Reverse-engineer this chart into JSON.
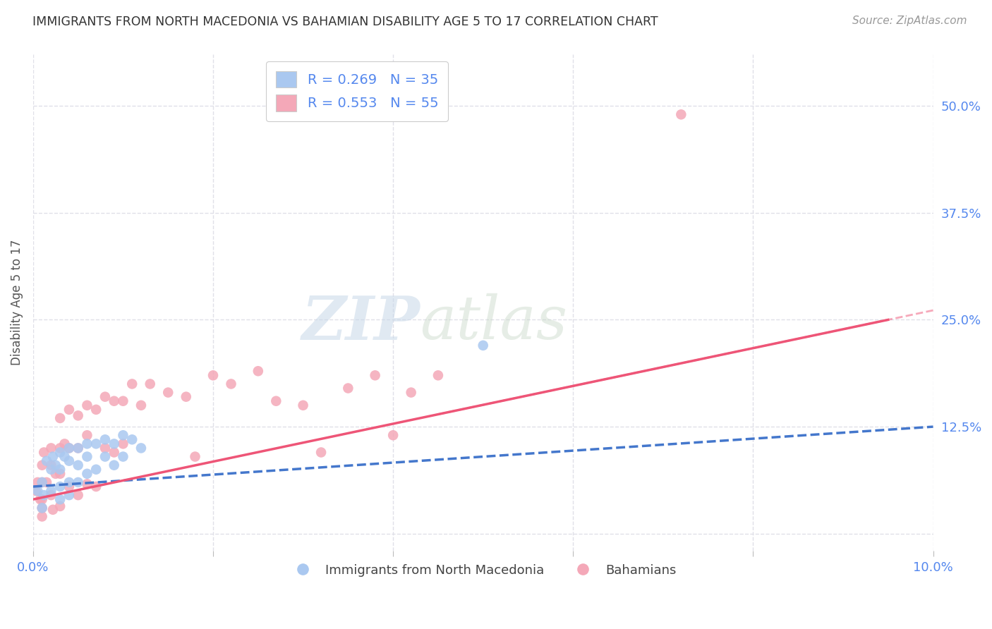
{
  "title": "IMMIGRANTS FROM NORTH MACEDONIA VS BAHAMIAN DISABILITY AGE 5 TO 17 CORRELATION CHART",
  "source": "Source: ZipAtlas.com",
  "ylabel": "Disability Age 5 to 17",
  "xlim": [
    0.0,
    0.1
  ],
  "ylim": [
    -0.02,
    0.56
  ],
  "xtick_positions": [
    0.0,
    0.02,
    0.04,
    0.06,
    0.08,
    0.1
  ],
  "xticklabels": [
    "0.0%",
    "",
    "",
    "",
    "",
    "10.0%"
  ],
  "yticks_right": [
    0.0,
    0.125,
    0.25,
    0.375,
    0.5
  ],
  "yticklabels_right": [
    "",
    "12.5%",
    "25.0%",
    "37.5%",
    "50.0%"
  ],
  "legend_stat_labels": [
    "R = 0.269   N = 35",
    "R = 0.553   N = 55"
  ],
  "legend_series_labels": [
    "Immigrants from North Macedonia",
    "Bahamians"
  ],
  "series1_color": "#aac8f0",
  "series2_color": "#f4a8b8",
  "line1_color": "#4477cc",
  "line2_color": "#ee5577",
  "title_color": "#333333",
  "source_color": "#999999",
  "label_color": "#5588ee",
  "grid_color": "#e0e0e8",
  "watermark_color": "#d8e4f0",
  "line1_style": "--",
  "line2_style": "-",
  "series1_x": [
    0.0005,
    0.001,
    0.0012,
    0.0015,
    0.002,
    0.002,
    0.0022,
    0.0025,
    0.003,
    0.003,
    0.003,
    0.003,
    0.0035,
    0.004,
    0.004,
    0.004,
    0.004,
    0.005,
    0.005,
    0.005,
    0.006,
    0.006,
    0.006,
    0.007,
    0.007,
    0.008,
    0.008,
    0.009,
    0.009,
    0.01,
    0.01,
    0.011,
    0.012,
    0.05,
    0.001
  ],
  "series1_y": [
    0.05,
    0.06,
    0.045,
    0.085,
    0.075,
    0.05,
    0.09,
    0.08,
    0.095,
    0.075,
    0.055,
    0.04,
    0.09,
    0.1,
    0.085,
    0.06,
    0.045,
    0.1,
    0.08,
    0.06,
    0.105,
    0.09,
    0.07,
    0.105,
    0.075,
    0.11,
    0.09,
    0.105,
    0.08,
    0.115,
    0.09,
    0.11,
    0.1,
    0.22,
    0.03
  ],
  "series2_x": [
    0.0003,
    0.0005,
    0.0008,
    0.001,
    0.001,
    0.001,
    0.0012,
    0.0015,
    0.002,
    0.002,
    0.002,
    0.0022,
    0.0025,
    0.003,
    0.003,
    0.003,
    0.003,
    0.0035,
    0.004,
    0.004,
    0.004,
    0.005,
    0.005,
    0.005,
    0.006,
    0.006,
    0.006,
    0.007,
    0.007,
    0.008,
    0.008,
    0.009,
    0.009,
    0.01,
    0.01,
    0.011,
    0.012,
    0.013,
    0.015,
    0.017,
    0.018,
    0.02,
    0.022,
    0.025,
    0.027,
    0.03,
    0.032,
    0.035,
    0.038,
    0.04,
    0.042,
    0.045,
    0.072,
    0.001,
    0.001
  ],
  "series2_y": [
    0.05,
    0.06,
    0.04,
    0.08,
    0.06,
    0.04,
    0.095,
    0.06,
    0.1,
    0.08,
    0.045,
    0.028,
    0.07,
    0.135,
    0.1,
    0.07,
    0.032,
    0.105,
    0.145,
    0.1,
    0.055,
    0.138,
    0.1,
    0.045,
    0.15,
    0.115,
    0.058,
    0.145,
    0.055,
    0.16,
    0.1,
    0.155,
    0.095,
    0.155,
    0.105,
    0.175,
    0.15,
    0.175,
    0.165,
    0.16,
    0.09,
    0.185,
    0.175,
    0.19,
    0.155,
    0.15,
    0.095,
    0.17,
    0.185,
    0.115,
    0.165,
    0.185,
    0.49,
    0.03,
    0.02
  ],
  "trend1_x": [
    0.0,
    0.1
  ],
  "trend1_y": [
    0.055,
    0.125
  ],
  "trend2_x": [
    0.0,
    0.095
  ],
  "trend2_y": [
    0.04,
    0.25
  ]
}
